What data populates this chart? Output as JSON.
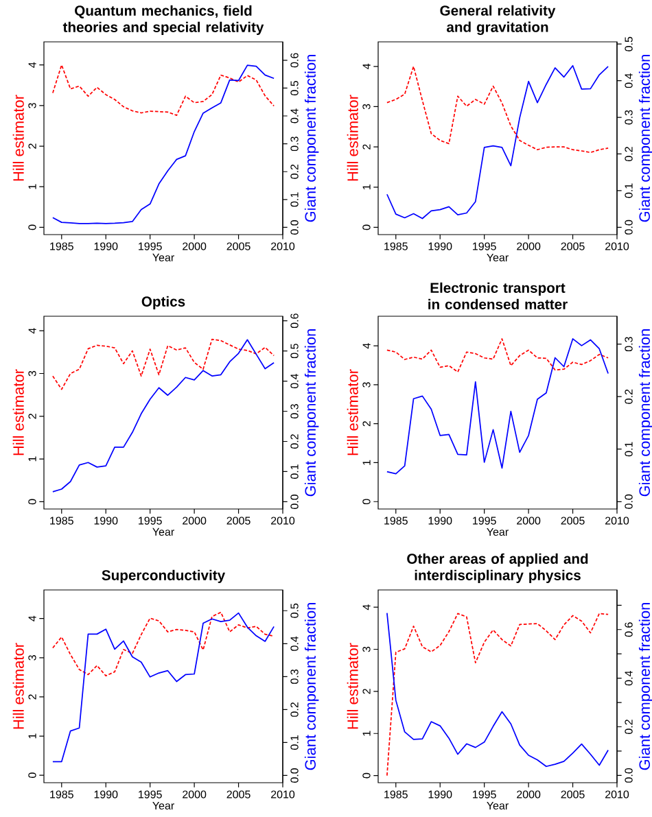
{
  "chart_data": [
    {
      "type": "line",
      "title": "Quantum mechanics, field theories and special relativity",
      "xlabel": "Year",
      "ylabel": "Hill estimator",
      "y2label": "Giant component fraction",
      "x": [
        1984,
        1985,
        1986,
        1987,
        1988,
        1989,
        1990,
        1991,
        1992,
        1993,
        1994,
        1995,
        1996,
        1997,
        1998,
        1999,
        2000,
        2001,
        2002,
        2003,
        2004,
        2005,
        2006,
        2007,
        2008,
        2009
      ],
      "xlim": [
        1983,
        2010
      ],
      "xticks": [
        1985,
        1990,
        1995,
        2000,
        2005,
        2010
      ],
      "ylim": [
        -0.18,
        4.57
      ],
      "yticks": [
        0,
        1,
        2,
        3,
        4
      ],
      "y2lim": [
        -0.026,
        0.666
      ],
      "y2ticks": [
        {
          "value": 0,
          "label": "0.0"
        },
        {
          "value": 0.1,
          "label": "0.1"
        },
        {
          "value": 0.2,
          "label": "0.2"
        },
        {
          "value": 0.3,
          "label": "0.3"
        },
        {
          "value": 0.4,
          "label": "0.4"
        },
        {
          "value": 0.5,
          "label": "0.5"
        },
        {
          "value": 0.6,
          "label": "0.6"
        }
      ],
      "series": [
        {
          "color": "#ff0000",
          "line_style": "dashed",
          "values": [
            3.31,
            4.0,
            3.41,
            3.48,
            3.23,
            3.45,
            3.27,
            3.15,
            2.97,
            2.87,
            2.82,
            2.86,
            2.85,
            2.84,
            2.76,
            3.23,
            3.07,
            3.1,
            3.27,
            3.75,
            3.68,
            3.58,
            3.74,
            3.63,
            3.24,
            2.99
          ]
        },
        {
          "color": "#0000ff",
          "line_style": "solid",
          "axis": "y2",
          "values": [
            0.035,
            0.018,
            0.016,
            0.014,
            0.014,
            0.015,
            0.014,
            0.015,
            0.017,
            0.021,
            0.064,
            0.084,
            0.156,
            0.203,
            0.244,
            0.257,
            0.344,
            0.41,
            0.429,
            0.447,
            0.529,
            0.527,
            0.582,
            0.578,
            0.547,
            0.535
          ]
        }
      ]
    },
    {
      "type": "line",
      "title": "General relativity and gravitation",
      "xlabel": "Year",
      "ylabel": "Hill estimator",
      "y2label": "Giant component fraction",
      "x": [
        1984,
        1985,
        1986,
        1987,
        1988,
        1989,
        1990,
        1991,
        1992,
        1993,
        1994,
        1995,
        1996,
        1997,
        1998,
        1999,
        2000,
        2001,
        2002,
        2003,
        2004,
        2005,
        2006,
        2007,
        2008,
        2009
      ],
      "xlim": [
        1983,
        2010
      ],
      "xticks": [
        1985,
        1990,
        1995,
        2000,
        2005,
        2010
      ],
      "ylim": [
        -0.18,
        4.61
      ],
      "yticks": [
        0,
        1,
        2,
        3,
        4
      ],
      "y2lim": [
        -0.02,
        0.506
      ],
      "y2ticks": [
        {
          "value": 0,
          "label": "0.0"
        },
        {
          "value": 0.1,
          "label": "0.1"
        },
        {
          "value": 0.2,
          "label": "0.2"
        },
        {
          "value": 0.3,
          "label": "0.3"
        },
        {
          "value": 0.4,
          "label": "0.4"
        },
        {
          "value": 0.5,
          "label": "0.5"
        }
      ],
      "series": [
        {
          "color": "#ff0000",
          "line_style": "dashed",
          "values": [
            3.1,
            3.18,
            3.31,
            4.0,
            3.15,
            2.33,
            2.16,
            2.08,
            3.26,
            3.01,
            3.18,
            3.06,
            3.51,
            3.09,
            2.52,
            2.16,
            2.04,
            1.93,
            1.99,
            2.0,
            2.0,
            1.93,
            1.9,
            1.86,
            1.93,
            1.97
          ]
        },
        {
          "color": "#0000ff",
          "line_style": "solid",
          "axis": "y2",
          "values": [
            0.09,
            0.036,
            0.026,
            0.037,
            0.024,
            0.045,
            0.048,
            0.056,
            0.034,
            0.039,
            0.07,
            0.218,
            0.222,
            0.218,
            0.168,
            0.299,
            0.398,
            0.34,
            0.39,
            0.435,
            0.41,
            0.441,
            0.377,
            0.378,
            0.416,
            0.439
          ]
        }
      ]
    },
    {
      "type": "line",
      "title": "Optics",
      "xlabel": "Year",
      "ylabel": "Hill estimator",
      "y2label": "Giant component fraction",
      "x": [
        1984,
        1985,
        1986,
        1987,
        1988,
        1989,
        1990,
        1991,
        1992,
        1993,
        1994,
        1995,
        1996,
        1997,
        1998,
        1999,
        2000,
        2001,
        2002,
        2003,
        2004,
        2005,
        2006,
        2007,
        2008,
        2009
      ],
      "xlim": [
        1983,
        2010
      ],
      "xticks": [
        1985,
        1990,
        1995,
        2000,
        2005,
        2010
      ],
      "ylim": [
        -0.17,
        4.34
      ],
      "yticks": [
        0,
        1,
        2,
        3,
        4
      ],
      "y2lim": [
        -0.024,
        0.615
      ],
      "y2ticks": [
        {
          "value": 0,
          "label": "0.0"
        },
        {
          "value": 0.1,
          "label": "0.1"
        },
        {
          "value": 0.2,
          "label": "0.2"
        },
        {
          "value": 0.3,
          "label": "0.3"
        },
        {
          "value": 0.4,
          "label": "0.4"
        },
        {
          "value": 0.5,
          "label": "0.5"
        },
        {
          "value": 0.6,
          "label": "0.6"
        }
      ],
      "series": [
        {
          "color": "#ff0000",
          "line_style": "dashed",
          "values": [
            2.94,
            2.63,
            3.0,
            3.1,
            3.58,
            3.66,
            3.64,
            3.6,
            3.23,
            3.53,
            2.94,
            3.57,
            2.97,
            3.65,
            3.55,
            3.6,
            3.26,
            3.1,
            3.8,
            3.77,
            3.67,
            3.57,
            3.54,
            3.46,
            3.61,
            3.42
          ]
        },
        {
          "color": "#0000ff",
          "line_style": "solid",
          "axis": "y2",
          "values": [
            0.033,
            0.042,
            0.067,
            0.122,
            0.13,
            0.115,
            0.119,
            0.181,
            0.181,
            0.23,
            0.292,
            0.34,
            0.378,
            0.353,
            0.38,
            0.412,
            0.404,
            0.435,
            0.417,
            0.421,
            0.464,
            0.492,
            0.537,
            0.489,
            0.441,
            0.461
          ]
        }
      ]
    },
    {
      "type": "line",
      "title": "Electronic transport in condensed matter",
      "xlabel": "Year",
      "ylabel": "Hill estimator",
      "y2label": "Giant component fraction",
      "x": [
        1984,
        1985,
        1986,
        1987,
        1988,
        1989,
        1990,
        1991,
        1992,
        1993,
        1994,
        1995,
        1996,
        1997,
        1998,
        1999,
        2000,
        2001,
        2002,
        2003,
        2004,
        2005,
        2006,
        2007,
        2008,
        2009
      ],
      "xlim": [
        1983,
        2010
      ],
      "xticks": [
        1985,
        1990,
        1995,
        2000,
        2005,
        2010
      ],
      "ylim": [
        -0.19,
        4.76
      ],
      "yticks": [
        0,
        1,
        2,
        3,
        4
      ],
      "y2lim": [
        -0.014,
        0.353
      ],
      "y2ticks": [
        {
          "value": 0,
          "label": "0.0"
        },
        {
          "value": 0.1,
          "label": "0.1"
        },
        {
          "value": 0.2,
          "label": "0.2"
        },
        {
          "value": 0.3,
          "label": "0.3"
        }
      ],
      "series": [
        {
          "color": "#ff0000",
          "line_style": "dashed",
          "values": [
            3.89,
            3.84,
            3.65,
            3.71,
            3.66,
            3.89,
            3.45,
            3.49,
            3.33,
            3.84,
            3.8,
            3.69,
            3.66,
            4.18,
            3.49,
            3.75,
            3.89,
            3.69,
            3.68,
            3.38,
            3.4,
            3.58,
            3.52,
            3.62,
            3.78,
            3.69
          ]
        },
        {
          "color": "#0000ff",
          "line_style": "solid",
          "axis": "y2",
          "values": [
            0.057,
            0.053,
            0.068,
            0.196,
            0.201,
            0.176,
            0.126,
            0.128,
            0.09,
            0.089,
            0.228,
            0.075,
            0.137,
            0.064,
            0.172,
            0.094,
            0.126,
            0.195,
            0.207,
            0.274,
            0.257,
            0.31,
            0.297,
            0.308,
            0.291,
            0.244
          ]
        }
      ]
    },
    {
      "type": "line",
      "title": "Superconductivity",
      "xlabel": "Year",
      "ylabel": "Hill estimator",
      "y2label": "Giant component fraction",
      "x": [
        1984,
        1985,
        1986,
        1987,
        1988,
        1989,
        1990,
        1991,
        1992,
        1993,
        1994,
        1995,
        1996,
        1997,
        1998,
        1999,
        2000,
        2001,
        2002,
        2003,
        2004,
        2005,
        2006,
        2007,
        2008,
        2009
      ],
      "xlim": [
        1983,
        2010
      ],
      "xticks": [
        1985,
        1990,
        1995,
        2000,
        2005,
        2010
      ],
      "ylim": [
        -0.19,
        4.73
      ],
      "yticks": [
        0,
        1,
        2,
        3,
        4
      ],
      "y2lim": [
        -0.022,
        0.563
      ],
      "y2ticks": [
        {
          "value": 0,
          "label": "0.0"
        },
        {
          "value": 0.1,
          "label": "0.1"
        },
        {
          "value": 0.2,
          "label": "0.2"
        },
        {
          "value": 0.3,
          "label": "0.3"
        },
        {
          "value": 0.4,
          "label": "0.4"
        },
        {
          "value": 0.5,
          "label": "0.5"
        }
      ],
      "series": [
        {
          "color": "#ff0000",
          "line_style": "dashed",
          "values": [
            3.25,
            3.53,
            3.08,
            2.7,
            2.57,
            2.8,
            2.54,
            2.64,
            3.21,
            3.11,
            3.59,
            4.01,
            3.94,
            3.66,
            3.72,
            3.7,
            3.66,
            3.2,
            4.05,
            4.16,
            3.66,
            3.84,
            3.76,
            3.8,
            3.6,
            3.55
          ]
        },
        {
          "color": "#0000ff",
          "line_style": "solid",
          "axis": "y2",
          "values": [
            0.042,
            0.042,
            0.135,
            0.144,
            0.429,
            0.429,
            0.444,
            0.383,
            0.408,
            0.36,
            0.344,
            0.299,
            0.311,
            0.318,
            0.285,
            0.306,
            0.308,
            0.462,
            0.475,
            0.467,
            0.471,
            0.493,
            0.45,
            0.424,
            0.407,
            0.452
          ]
        }
      ]
    },
    {
      "type": "line",
      "title": "Other areas of applied and interdisciplinary physics",
      "xlabel": "Year",
      "ylabel": "Hill estimator",
      "y2label": "Giant component fraction",
      "x": [
        1984,
        1985,
        1986,
        1987,
        1988,
        1989,
        1990,
        1991,
        1992,
        1993,
        1994,
        1995,
        1996,
        1997,
        1998,
        1999,
        2000,
        2001,
        2002,
        2003,
        2004,
        2005,
        2006,
        2007,
        2008,
        2009
      ],
      "xlim": [
        1983,
        2010
      ],
      "xticks": [
        1985,
        1990,
        1995,
        2000,
        2005,
        2010
      ],
      "ylim": [
        -0.17,
        4.41
      ],
      "yticks": [
        0,
        1,
        2,
        3,
        4
      ],
      "y2lim": [
        -0.03,
        0.763
      ],
      "y2ticks": [
        {
          "value": 0,
          "label": "0.0"
        },
        {
          "value": 0.1,
          "label": null
        },
        {
          "value": 0.2,
          "label": "0.2"
        },
        {
          "value": 0.3,
          "label": null
        },
        {
          "value": 0.4,
          "label": "0.4"
        },
        {
          "value": 0.5,
          "label": null
        },
        {
          "value": 0.6,
          "label": "0.6"
        },
        {
          "value": 0.7,
          "label": null
        }
      ],
      "series": [
        {
          "color": "#ff0000",
          "line_style": "dashed",
          "values": [
            0.0,
            2.93,
            3.01,
            3.55,
            3.06,
            2.94,
            3.09,
            3.42,
            3.85,
            3.77,
            2.68,
            3.17,
            3.46,
            3.23,
            3.08,
            3.59,
            3.6,
            3.61,
            3.44,
            3.23,
            3.58,
            3.8,
            3.67,
            3.39,
            3.85,
            3.83
          ]
        },
        {
          "color": "#0000ff",
          "line_style": "solid",
          "axis": "y2",
          "values": [
            0.668,
            0.309,
            0.179,
            0.148,
            0.15,
            0.221,
            0.204,
            0.153,
            0.087,
            0.13,
            0.115,
            0.137,
            0.202,
            0.262,
            0.212,
            0.125,
            0.083,
            0.064,
            0.037,
            0.046,
            0.058,
            0.092,
            0.129,
            0.087,
            0.042,
            0.104
          ]
        }
      ]
    }
  ]
}
